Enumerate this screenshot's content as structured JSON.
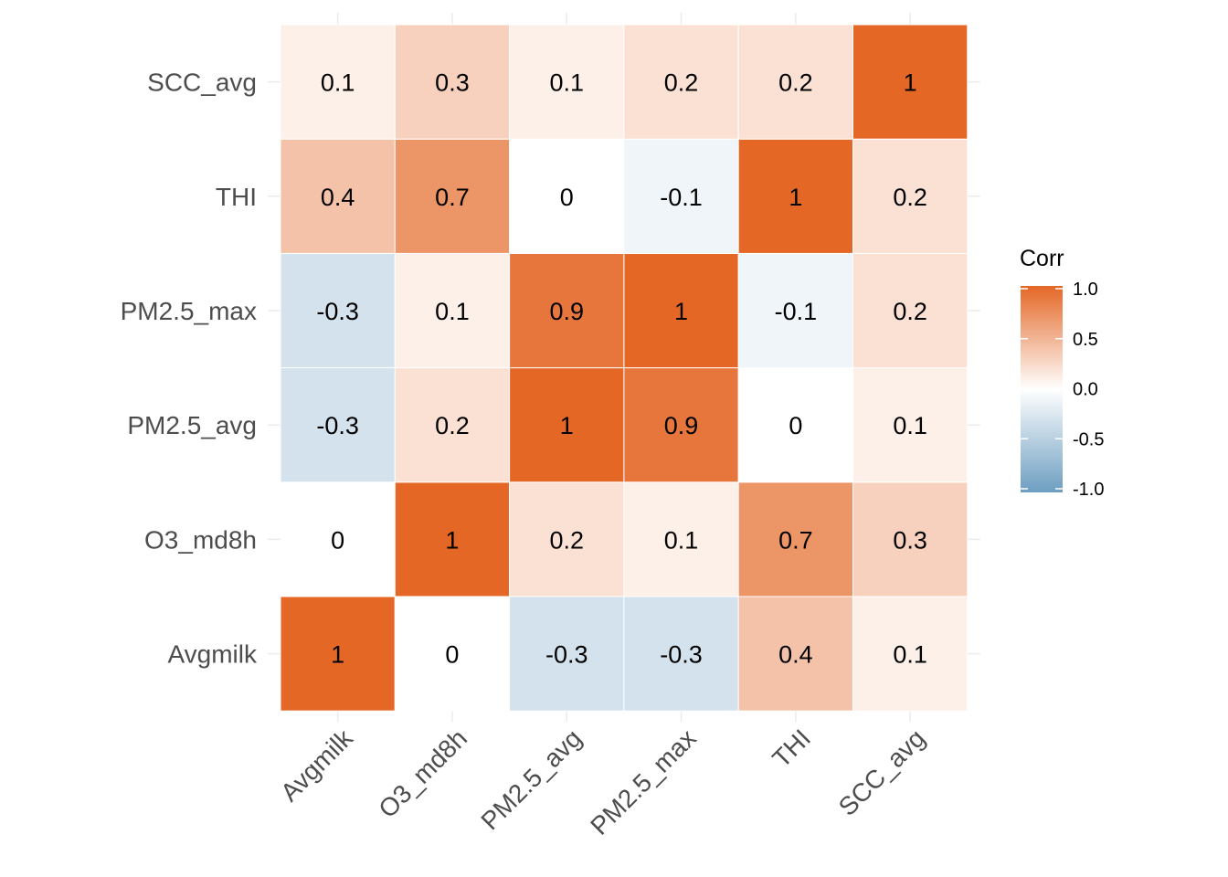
{
  "chart_data": {
    "type": "heatmap",
    "title": "",
    "xlabel": "",
    "ylabel": "",
    "x_categories": [
      "Avgmilk",
      "O3_md8h",
      "PM2.5_avg",
      "PM2.5_max",
      "THI",
      "SCC_avg"
    ],
    "y_categories": [
      "Avgmilk",
      "O3_md8h",
      "PM2.5_avg",
      "PM2.5_max",
      "THI",
      "SCC_avg"
    ],
    "values": [
      [
        1,
        0,
        -0.3,
        -0.3,
        0.4,
        0.1
      ],
      [
        0,
        1,
        0.2,
        0.1,
        0.7,
        0.3
      ],
      [
        -0.3,
        0.2,
        1,
        0.9,
        0,
        0.1
      ],
      [
        -0.3,
        0.1,
        0.9,
        1,
        -0.1,
        0.2
      ],
      [
        0.4,
        0.7,
        0,
        -0.1,
        1,
        0.2
      ],
      [
        0.1,
        0.3,
        0.1,
        0.2,
        0.2,
        1
      ]
    ],
    "cell_labels": [
      [
        "1",
        "0",
        "-0.3",
        "-0.3",
        "0.4",
        "0.1"
      ],
      [
        "0",
        "1",
        "0.2",
        "0.1",
        "0.7",
        "0.3"
      ],
      [
        "-0.3",
        "0.2",
        "1",
        "0.9",
        "0",
        "0.1"
      ],
      [
        "-0.3",
        "0.1",
        "0.9",
        "1",
        "-0.1",
        "0.2"
      ],
      [
        "0.4",
        "0.7",
        "0",
        "-0.1",
        "1",
        "0.2"
      ],
      [
        "0.1",
        "0.3",
        "0.1",
        "0.2",
        "0.2",
        "1"
      ]
    ],
    "color_scale": {
      "low": "#6d9ec1",
      "mid": "#ffffff",
      "high": "#e46726",
      "limits": [
        -1,
        1
      ]
    },
    "legend": {
      "title": "Corr",
      "placement": "right",
      "ticks": [
        {
          "value": 1.0,
          "label": "1.0"
        },
        {
          "value": 0.5,
          "label": "0.5"
        },
        {
          "value": 0.0,
          "label": "0.0"
        },
        {
          "value": -0.5,
          "label": "-0.5"
        },
        {
          "value": -1.0,
          "label": "-1.0"
        }
      ]
    },
    "grid": true
  }
}
